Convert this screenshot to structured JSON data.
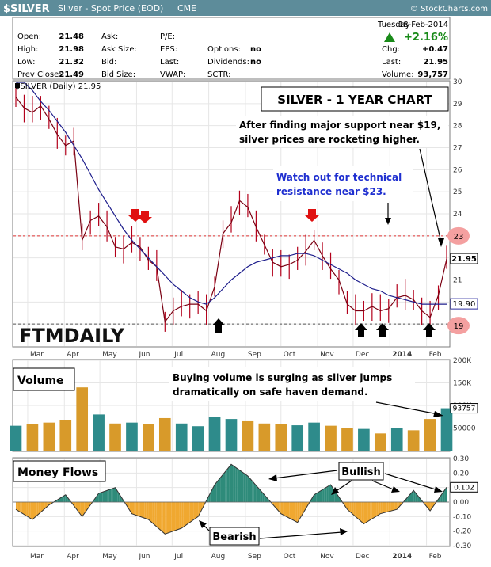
{
  "header": {
    "symbol": "$SILVER",
    "description": "Silver - Spot Price (EOD)",
    "exchange": "CME",
    "copyright": "© StockCharts.com",
    "accent_color": "#5d8c9a"
  },
  "quote": {
    "day": "Tuesday",
    "date": "18-Feb-2014",
    "pct_change": "+2.16%",
    "fields_left": [
      {
        "label": "Open:",
        "value": "21.48"
      },
      {
        "label": "High:",
        "value": "21.98"
      },
      {
        "label": "Low:",
        "value": "21.32"
      },
      {
        "label": "Prev Close:",
        "value": "21.49"
      }
    ],
    "fields_mid": [
      {
        "label": "Ask:",
        "value": ""
      },
      {
        "label": "Ask Size:",
        "value": ""
      },
      {
        "label": "Bid:",
        "value": ""
      },
      {
        "label": "Bid Size:",
        "value": ""
      }
    ],
    "fields_mid2": [
      {
        "label": "P/E:",
        "value": ""
      },
      {
        "label": "EPS:",
        "value": ""
      },
      {
        "label": "Last:",
        "value": ""
      },
      {
        "label": "VWAP:",
        "value": ""
      }
    ],
    "fields_mid3": [
      {
        "label": "",
        "value": ""
      },
      {
        "label": "Options:",
        "value": "no"
      },
      {
        "label": "Dividends:",
        "value": "no"
      },
      {
        "label": "SCTR:",
        "value": ""
      }
    ],
    "fields_right": [
      {
        "label": "Chg:",
        "value": "+0.47"
      },
      {
        "label": "Last:",
        "value": "21.95"
      },
      {
        "label": "Volume:",
        "value": "93,757"
      }
    ]
  },
  "price_panel": {
    "legend": "$SILVER (Daily) 21.95",
    "title_box": "SILVER - 1 YEAR CHART",
    "note1": [
      "After finding major support near $19,",
      "silver prices are rocketing higher."
    ],
    "note2": [
      "Watch out for technical",
      "resistance near $23."
    ],
    "watermark": "FTMDAILY",
    "last_price_label": "21.95",
    "ma_label": "19.90",
    "resistance_label": "23",
    "support_label": "19"
  },
  "volume_panel": {
    "title": "Volume",
    "note": [
      "Buying volume is surging as silver jumps",
      "dramatically on safe haven demand."
    ],
    "last_label": "93757"
  },
  "flow_panel": {
    "title": "Money Flows",
    "bullish": "Bullish",
    "bearish": "Bearish",
    "last_label": "0.102"
  },
  "x_axis": {
    "labels": [
      "Mar",
      "Apr",
      "May",
      "Jun",
      "Jul",
      "Aug",
      "Sep",
      "Oct",
      "Nov",
      "Dec",
      "2014",
      "Feb"
    ]
  },
  "chart_data": [
    {
      "type": "line",
      "ylim": [
        18,
        30
      ],
      "y_ticks": [
        19,
        20,
        21,
        22,
        23,
        24,
        25,
        26,
        27,
        28,
        29,
        30
      ],
      "x": [
        "2013-02-19",
        "2013-02-26",
        "2013-03-05",
        "2013-03-12",
        "2013-03-19",
        "2013-03-26",
        "2013-04-02",
        "2013-04-09",
        "2013-04-16",
        "2013-04-23",
        "2013-04-30",
        "2013-05-07",
        "2013-05-14",
        "2013-05-21",
        "2013-05-28",
        "2013-06-04",
        "2013-06-11",
        "2013-06-18",
        "2013-06-25",
        "2013-07-02",
        "2013-07-09",
        "2013-07-16",
        "2013-07-23",
        "2013-07-30",
        "2013-08-06",
        "2013-08-13",
        "2013-08-20",
        "2013-08-27",
        "2013-09-03",
        "2013-09-10",
        "2013-09-17",
        "2013-09-24",
        "2013-10-01",
        "2013-10-08",
        "2013-10-15",
        "2013-10-22",
        "2013-10-29",
        "2013-11-05",
        "2013-11-12",
        "2013-11-19",
        "2013-11-26",
        "2013-12-03",
        "2013-12-10",
        "2013-12-17",
        "2013-12-24",
        "2013-12-31",
        "2014-01-07",
        "2014-01-14",
        "2014-01-21",
        "2014-01-28",
        "2014-02-04",
        "2014-02-11",
        "2014-02-18"
      ],
      "series": [
        {
          "values": [
            29.3,
            28.8,
            28.6,
            28.9,
            28.3,
            27.6,
            27.1,
            27.3,
            22.8,
            23.7,
            23.9,
            23.4,
            22.5,
            22.4,
            22.7,
            22.5,
            21.9,
            21.6,
            19.1,
            19.6,
            19.8,
            19.9,
            19.9,
            19.6,
            20.7,
            23.1,
            23.6,
            24.6,
            24.3,
            23.4,
            22.6,
            21.8,
            21.6,
            21.7,
            21.9,
            22.3,
            22.8,
            22.1,
            21.5,
            21.0,
            19.9,
            19.6,
            19.6,
            19.8,
            19.6,
            19.7,
            20.2,
            20.3,
            20.1,
            19.6,
            19.3,
            20.3,
            21.95
          ]
        },
        {
          "values": [
            30.4,
            30.0,
            29.6,
            29.1,
            28.7,
            28.2,
            27.7,
            27.1,
            26.5,
            25.8,
            25.1,
            24.5,
            23.9,
            23.3,
            22.8,
            22.4,
            22.0,
            21.6,
            21.2,
            20.8,
            20.5,
            20.2,
            20.0,
            19.9,
            20.2,
            20.6,
            21.0,
            21.3,
            21.6,
            21.8,
            21.9,
            22.0,
            22.1,
            22.1,
            22.2,
            22.2,
            22.1,
            21.9,
            21.7,
            21.5,
            21.3,
            21.0,
            20.8,
            20.6,
            20.5,
            20.3,
            20.2,
            20.1,
            20.0,
            19.9,
            19.9,
            19.9,
            19.9
          ]
        }
      ],
      "annotations": {
        "resistance": 23,
        "support": 19
      },
      "grid": true
    },
    {
      "type": "bar",
      "ylim": [
        0,
        200000
      ],
      "y_ticks": [
        50000,
        100000,
        150000,
        200000
      ],
      "y_tick_labels": [
        "50000",
        "100K",
        "150K",
        "200K"
      ],
      "x": [
        "2013-02-19",
        "2013-03-05",
        "2013-03-19",
        "2013-04-02",
        "2013-04-16",
        "2013-04-30",
        "2013-05-14",
        "2013-05-28",
        "2013-06-11",
        "2013-06-25",
        "2013-07-09",
        "2013-07-23",
        "2013-08-06",
        "2013-08-20",
        "2013-09-03",
        "2013-09-17",
        "2013-10-01",
        "2013-10-15",
        "2013-10-29",
        "2013-11-12",
        "2013-11-26",
        "2013-12-10",
        "2013-12-24",
        "2014-01-07",
        "2014-01-21",
        "2014-02-04",
        "2014-02-18"
      ],
      "values": [
        55000,
        58000,
        62000,
        68000,
        140000,
        80000,
        60000,
        62000,
        58000,
        72000,
        60000,
        54000,
        75000,
        70000,
        65000,
        60000,
        58000,
        56000,
        62000,
        55000,
        50000,
        48000,
        38000,
        50000,
        45000,
        70000,
        93757
      ]
    },
    {
      "type": "area",
      "ylim": [
        -0.3,
        0.3
      ],
      "y_ticks": [
        -0.3,
        -0.2,
        -0.1,
        0.0,
        0.1,
        0.2,
        0.3
      ],
      "y_tick_labels": [
        "-0.30",
        "-0.20",
        "-0.10",
        "0.00",
        "0.10",
        "0.20",
        "0.30"
      ],
      "x": [
        "2013-02-19",
        "2013-03-05",
        "2013-03-19",
        "2013-04-02",
        "2013-04-16",
        "2013-04-30",
        "2013-05-14",
        "2013-05-28",
        "2013-06-11",
        "2013-06-25",
        "2013-07-09",
        "2013-07-23",
        "2013-08-06",
        "2013-08-20",
        "2013-09-03",
        "2013-09-17",
        "2013-10-01",
        "2013-10-15",
        "2013-10-29",
        "2013-11-12",
        "2013-11-26",
        "2013-12-10",
        "2013-12-24",
        "2014-01-07",
        "2014-01-21",
        "2014-02-04",
        "2014-02-18"
      ],
      "values": [
        -0.05,
        -0.12,
        -0.02,
        0.05,
        -0.1,
        0.06,
        0.1,
        -0.08,
        -0.12,
        -0.22,
        -0.18,
        -0.1,
        0.12,
        0.26,
        0.18,
        0.05,
        -0.08,
        -0.14,
        0.05,
        0.12,
        -0.05,
        -0.15,
        -0.08,
        -0.05,
        0.08,
        -0.06,
        0.102
      ]
    }
  ]
}
